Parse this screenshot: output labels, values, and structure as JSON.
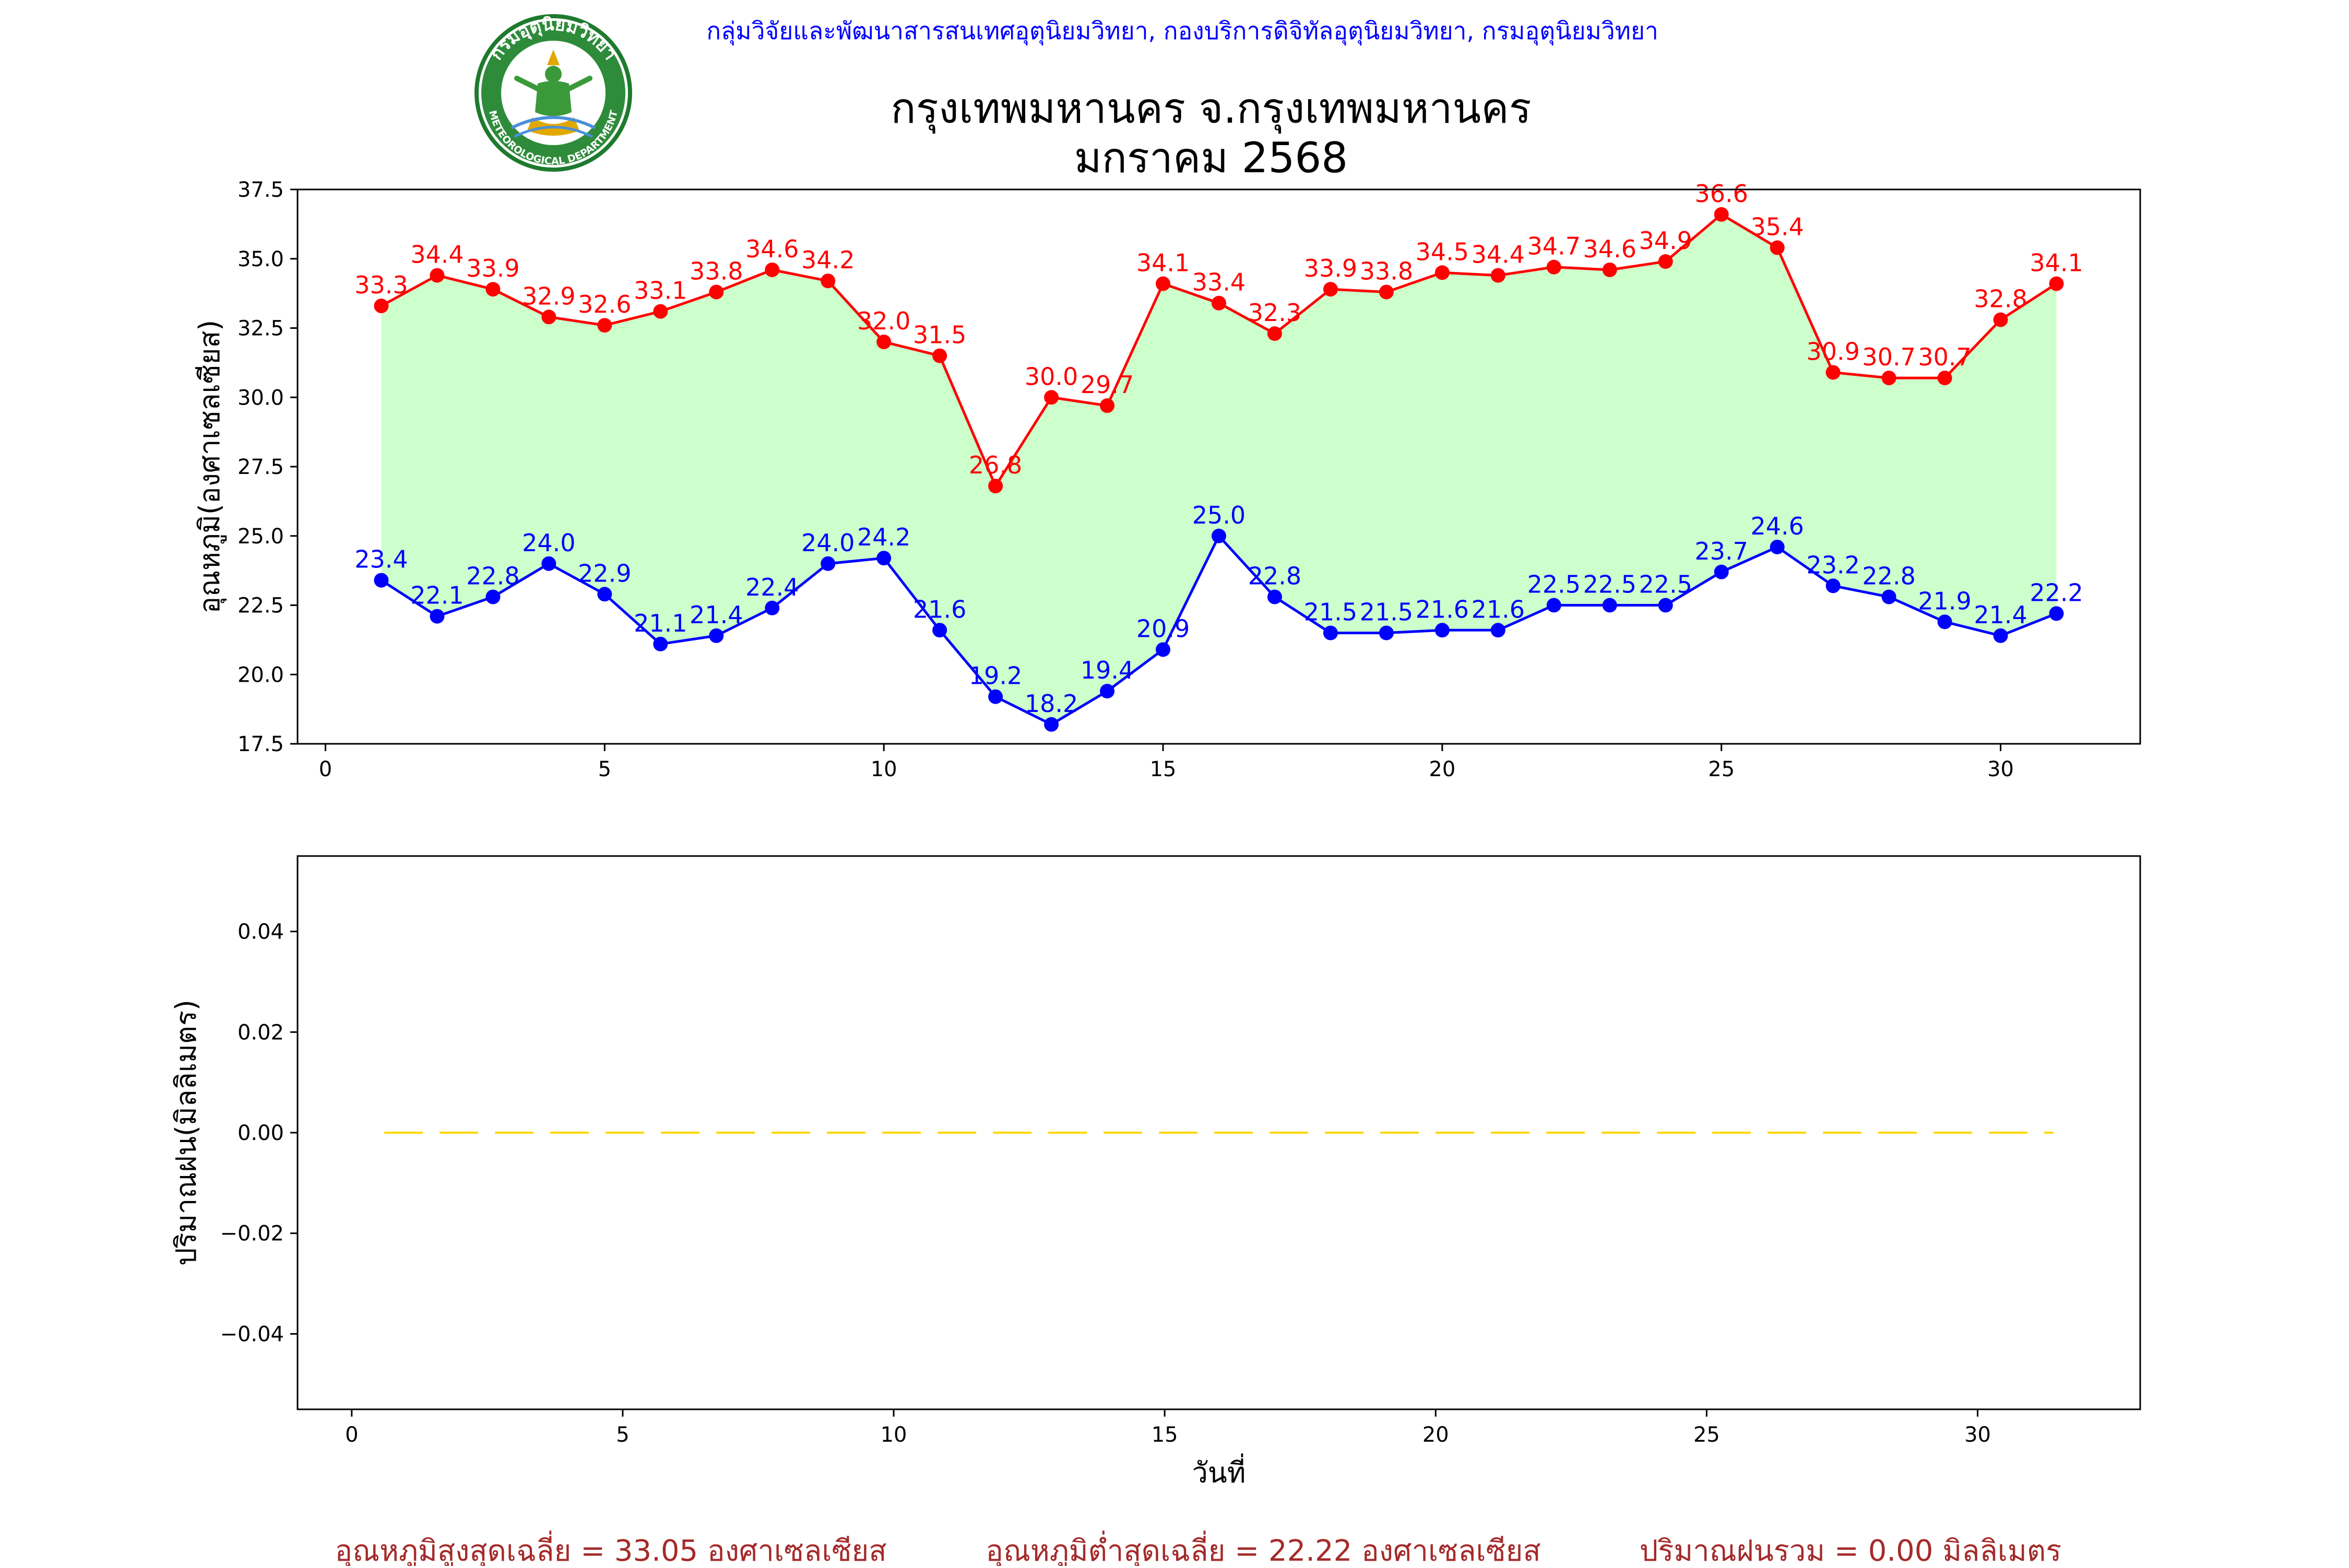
{
  "header": {
    "org_line": "กลุ่มวิจัยและพัฒนาสารสนเทศอุตุนิยมวิทยา, กองบริการดิจิทัลอุตุนิยมวิทยา, กรมอุตุนิยมวิทยา",
    "title_line1": "กรุงเทพมหานคร จ.กรุงเทพมหานคร",
    "title_line2": "มกราคม 2568",
    "logo_text_top": "กรมอุตุนิยมวิทยา",
    "logo_text_bottom": "METEOROLOGICAL DEPARTMENT"
  },
  "colors": {
    "max_series": "#ff0000",
    "min_series": "#0000ff",
    "fill": "#ccffcc",
    "rain": "#ffd700",
    "org_text": "#0000ff",
    "summary_text": "#a52a2a",
    "logo_green": "#1e7a2e"
  },
  "chart_data": [
    {
      "type": "line",
      "ylabel": "อุณหภูมิ(องศาเซลเซียส)",
      "xlabel": "",
      "xlim": [
        -0.5,
        32.5
      ],
      "ylim": [
        17.5,
        37.5
      ],
      "xticks": [
        0,
        5,
        10,
        15,
        20,
        25,
        30
      ],
      "yticks": [
        17.5,
        20.0,
        22.5,
        25.0,
        27.5,
        30.0,
        32.5,
        35.0,
        37.5
      ],
      "ytick_labels": [
        "17.5",
        "20.0",
        "22.5",
        "25.0",
        "27.5",
        "30.0",
        "32.5",
        "35.0",
        "37.5"
      ],
      "fill_between": true,
      "grid": false,
      "x": [
        1,
        2,
        3,
        4,
        5,
        6,
        7,
        8,
        9,
        10,
        11,
        12,
        13,
        14,
        15,
        16,
        17,
        18,
        19,
        20,
        21,
        22,
        23,
        24,
        25,
        26,
        27,
        28,
        29,
        30,
        31
      ],
      "series": [
        {
          "color": "#ff0000",
          "values": [
            33.3,
            34.4,
            33.9,
            32.9,
            32.6,
            33.1,
            33.8,
            34.6,
            34.2,
            32.0,
            31.5,
            26.8,
            30.0,
            29.7,
            34.1,
            33.4,
            32.3,
            33.9,
            33.8,
            34.5,
            34.4,
            34.7,
            34.6,
            34.9,
            36.6,
            35.4,
            30.9,
            30.7,
            30.7,
            32.8,
            34.1
          ],
          "labels": [
            "33.3",
            "34.4",
            "33.9",
            "32.9",
            "32.6",
            "33.1",
            "33.8",
            "34.6",
            "34.2",
            "32.0",
            "31.5",
            "26.8",
            "30.0",
            "29.7",
            "34.1",
            "33.4",
            "32.3",
            "33.9",
            "33.8",
            "34.5",
            "34.4",
            "34.7",
            "34.6",
            "34.9",
            "36.6",
            "35.4",
            "30.9",
            "30.7",
            "30.7",
            "32.8",
            "34.1"
          ]
        },
        {
          "color": "#0000ff",
          "values": [
            23.4,
            22.1,
            22.8,
            24.0,
            22.9,
            21.1,
            21.4,
            22.4,
            24.0,
            24.2,
            21.6,
            19.2,
            18.2,
            19.4,
            20.9,
            25.0,
            22.8,
            21.5,
            21.5,
            21.6,
            21.6,
            22.5,
            22.5,
            22.5,
            23.7,
            24.6,
            23.2,
            22.8,
            21.9,
            21.4,
            22.2
          ],
          "labels": [
            "23.4",
            "22.1",
            "22.8",
            "24.0",
            "22.9",
            "21.1",
            "21.4",
            "22.4",
            "24.0",
            "24.2",
            "21.6",
            "19.2",
            "18.2",
            "19.4",
            "20.9",
            "25.0",
            "22.8",
            "21.5",
            "21.5",
            "21.6",
            "21.6",
            "22.5",
            "22.5",
            "22.5",
            "23.7",
            "24.6",
            "23.2",
            "22.8",
            "21.9",
            "21.4",
            "22.2"
          ]
        }
      ]
    },
    {
      "type": "line",
      "ylabel": "ปริมาณฝน(มิลลิเมตร)",
      "xlabel": "วันที่",
      "xlim": [
        -1,
        33
      ],
      "ylim": [
        -0.055,
        0.055
      ],
      "xticks": [
        0,
        5,
        10,
        15,
        20,
        25,
        30
      ],
      "yticks": [
        -0.04,
        -0.02,
        0.0,
        0.02,
        0.04
      ],
      "ytick_labels": [
        "−0.04",
        "−0.02",
        "0.00",
        "0.02",
        "0.04"
      ],
      "grid": false,
      "series": [
        {
          "color": "#ffd700",
          "line_style": "dashed",
          "x": [
            0.6,
            31.4
          ],
          "values": [
            0.0,
            0.0
          ]
        }
      ]
    }
  ],
  "summary": {
    "avg_max": "อุณหภูมิสูงสุดเฉลี่ย = 33.05 องศาเซลเซียส",
    "avg_min": "อุณหภูมิต่ำสุดเฉลี่ย = 22.22 องศาเซลเซียส",
    "total_rain": "ปริมาณฝนรวม = 0.00 มิลลิเมตร"
  }
}
